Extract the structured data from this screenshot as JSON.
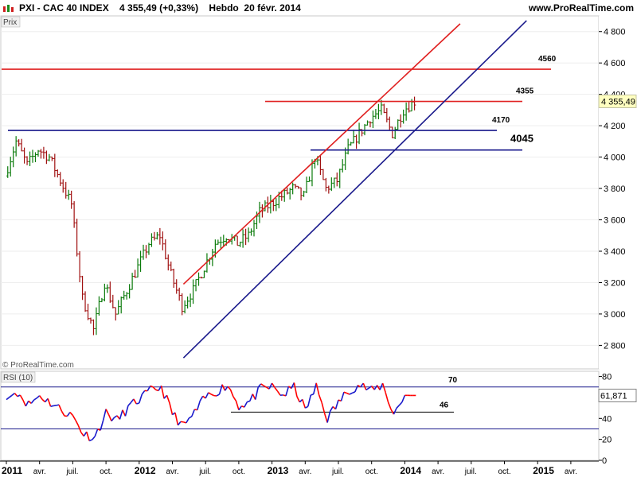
{
  "header": {
    "title": "PXI - CAC 40 INDEX    4 355,49 (+0,33%)    Hebdo  20 févr. 2014",
    "site": "www.ProRealTime.com"
  },
  "main_panel": {
    "label": "Prix",
    "watermark": "© ProRealTime.com"
  },
  "rsi_panel": {
    "label": "RSI (10)"
  },
  "chart_data": [
    {
      "type": "candlestick",
      "title": "PXI - CAC 40 INDEX 4 355,49 (+0,33%) Hebdo 20 févr. 2014",
      "ylim": [
        2650,
        4900
      ],
      "y_ticks": [
        2800,
        3000,
        3200,
        3400,
        3600,
        3800,
        4000,
        4200,
        4400,
        4600,
        4800
      ],
      "y_tick_labels": [
        "2 800",
        "3 000",
        "3 200",
        "3 400",
        "3 600",
        "3 800",
        "4 000",
        "4 200",
        "4 400",
        "4 600",
        "4 800"
      ],
      "last_value_label": "4 355,49",
      "last_value": 4355.49,
      "up_color": "#0a7a0a",
      "down_color": "#a01010",
      "close_path": [
        {
          "x": "2011-01",
          "y": 3880
        },
        {
          "x": "2011-02",
          "y": 4100
        },
        {
          "x": "2011-03",
          "y": 3950
        },
        {
          "x": "2011-04",
          "y": 4050
        },
        {
          "x": "2011-05",
          "y": 4000
        },
        {
          "x": "2011-06",
          "y": 3850
        },
        {
          "x": "2011-07",
          "y": 3700
        },
        {
          "x": "2011-08",
          "y": 3100
        },
        {
          "x": "2011-09",
          "y": 2900
        },
        {
          "x": "2011-10",
          "y": 3200
        },
        {
          "x": "2011-11",
          "y": 3000
        },
        {
          "x": "2011-12",
          "y": 3150
        },
        {
          "x": "2012-01",
          "y": 3300
        },
        {
          "x": "2012-02",
          "y": 3450
        },
        {
          "x": "2012-03",
          "y": 3500
        },
        {
          "x": "2012-04",
          "y": 3250
        },
        {
          "x": "2012-05",
          "y": 3050
        },
        {
          "x": "2012-06",
          "y": 3150
        },
        {
          "x": "2012-07",
          "y": 3300
        },
        {
          "x": "2012-08",
          "y": 3450
        },
        {
          "x": "2012-09",
          "y": 3500
        },
        {
          "x": "2012-10",
          "y": 3450
        },
        {
          "x": "2012-11",
          "y": 3500
        },
        {
          "x": "2012-12",
          "y": 3650
        },
        {
          "x": "2013-01",
          "y": 3700
        },
        {
          "x": "2013-02",
          "y": 3750
        },
        {
          "x": "2013-03",
          "y": 3800
        },
        {
          "x": "2013-04",
          "y": 3750
        },
        {
          "x": "2013-05",
          "y": 4000
        },
        {
          "x": "2013-06",
          "y": 3800
        },
        {
          "x": "2013-07",
          "y": 3850
        },
        {
          "x": "2013-08",
          "y": 4050
        },
        {
          "x": "2013-09",
          "y": 4150
        },
        {
          "x": "2013-10",
          "y": 4250
        },
        {
          "x": "2013-11",
          "y": 4300
        },
        {
          "x": "2013-12",
          "y": 4150
        },
        {
          "x": "2014-01",
          "y": 4300
        },
        {
          "x": "2014-02",
          "y": 4355
        }
      ],
      "horizontal_levels": [
        {
          "value": 4560,
          "label": "4560",
          "color": "#e02020"
        },
        {
          "value": 4355,
          "label": "4355",
          "color": "#e02020"
        },
        {
          "value": 4170,
          "label": "4170",
          "color": "#1a1a8c"
        },
        {
          "value": 4045,
          "label": "4045",
          "color": "#1a1a8c"
        }
      ],
      "trend_lines": [
        {
          "color": "#e02020",
          "from": {
            "x": "2012-05",
            "y": 3190
          },
          "to": {
            "x": "2014-06",
            "y": 4850
          }
        },
        {
          "color": "#1a1a8c",
          "from": {
            "x": "2012-05",
            "y": 2720
          },
          "to": {
            "x": "2014-12",
            "y": 4870
          }
        }
      ]
    },
    {
      "type": "line",
      "title": "RSI (10)",
      "ylim": [
        0,
        85
      ],
      "y_ticks": [
        0,
        20,
        40,
        60,
        80
      ],
      "y_tick_labels": [
        "0",
        "20",
        "40",
        "60",
        "80"
      ],
      "last_value_label": "61,871",
      "last_value": 61.871,
      "reference_lines": [
        70,
        30
      ],
      "annotations": [
        {
          "label": "70",
          "value": 70
        },
        {
          "label": "46",
          "value": 46
        }
      ],
      "series": [
        {
          "color": "#ff0000",
          "secondary_color": "#1a1acc",
          "points": [
            {
              "x": "2011-01",
              "y": 58
            },
            {
              "x": "2011-02",
              "y": 66
            },
            {
              "x": "2011-03",
              "y": 53
            },
            {
              "x": "2011-04",
              "y": 62
            },
            {
              "x": "2011-05",
              "y": 55
            },
            {
              "x": "2011-06",
              "y": 48
            },
            {
              "x": "2011-07",
              "y": 42
            },
            {
              "x": "2011-08",
              "y": 25
            },
            {
              "x": "2011-09",
              "y": 22
            },
            {
              "x": "2011-10",
              "y": 45
            },
            {
              "x": "2011-11",
              "y": 38
            },
            {
              "x": "2011-12",
              "y": 50
            },
            {
              "x": "2012-01",
              "y": 58
            },
            {
              "x": "2012-02",
              "y": 66
            },
            {
              "x": "2012-03",
              "y": 70
            },
            {
              "x": "2012-04",
              "y": 45
            },
            {
              "x": "2012-05",
              "y": 32
            },
            {
              "x": "2012-06",
              "y": 45
            },
            {
              "x": "2012-07",
              "y": 60
            },
            {
              "x": "2012-08",
              "y": 66
            },
            {
              "x": "2012-09",
              "y": 72
            },
            {
              "x": "2012-10",
              "y": 52
            },
            {
              "x": "2012-11",
              "y": 56
            },
            {
              "x": "2012-12",
              "y": 68
            },
            {
              "x": "2013-01",
              "y": 70
            },
            {
              "x": "2013-02",
              "y": 62
            },
            {
              "x": "2013-03",
              "y": 70
            },
            {
              "x": "2013-04",
              "y": 48
            },
            {
              "x": "2013-05",
              "y": 70
            },
            {
              "x": "2013-06",
              "y": 40
            },
            {
              "x": "2013-07",
              "y": 55
            },
            {
              "x": "2013-08",
              "y": 68
            },
            {
              "x": "2013-09",
              "y": 72
            },
            {
              "x": "2013-10",
              "y": 66
            },
            {
              "x": "2013-11",
              "y": 72
            },
            {
              "x": "2013-12",
              "y": 44
            },
            {
              "x": "2014-01",
              "y": 62
            },
            {
              "x": "2014-02",
              "y": 61.871
            }
          ]
        }
      ]
    }
  ],
  "x_axis": {
    "ticks": [
      {
        "label": "2011",
        "x": "2011-01",
        "major": true
      },
      {
        "label": "avr.",
        "x": "2011-04",
        "major": false
      },
      {
        "label": "juil.",
        "x": "2011-07",
        "major": false
      },
      {
        "label": "oct.",
        "x": "2011-10",
        "major": false
      },
      {
        "label": "2012",
        "x": "2012-01",
        "major": true
      },
      {
        "label": "avr.",
        "x": "2012-04",
        "major": false
      },
      {
        "label": "juil.",
        "x": "2012-07",
        "major": false
      },
      {
        "label": "oct.",
        "x": "2012-10",
        "major": false
      },
      {
        "label": "2013",
        "x": "2013-01",
        "major": true
      },
      {
        "label": "avr.",
        "x": "2013-04",
        "major": false
      },
      {
        "label": "juil.",
        "x": "2013-07",
        "major": false
      },
      {
        "label": "oct.",
        "x": "2013-10",
        "major": false
      },
      {
        "label": "2014",
        "x": "2014-01",
        "major": true
      },
      {
        "label": "avr.",
        "x": "2014-04",
        "major": false
      },
      {
        "label": "juil.",
        "x": "2014-07",
        "major": false
      },
      {
        "label": "oct.",
        "x": "2014-10",
        "major": false
      },
      {
        "label": "2015",
        "x": "2015-01",
        "major": true
      },
      {
        "label": "avr.",
        "x": "2015-04",
        "major": false
      }
    ]
  }
}
